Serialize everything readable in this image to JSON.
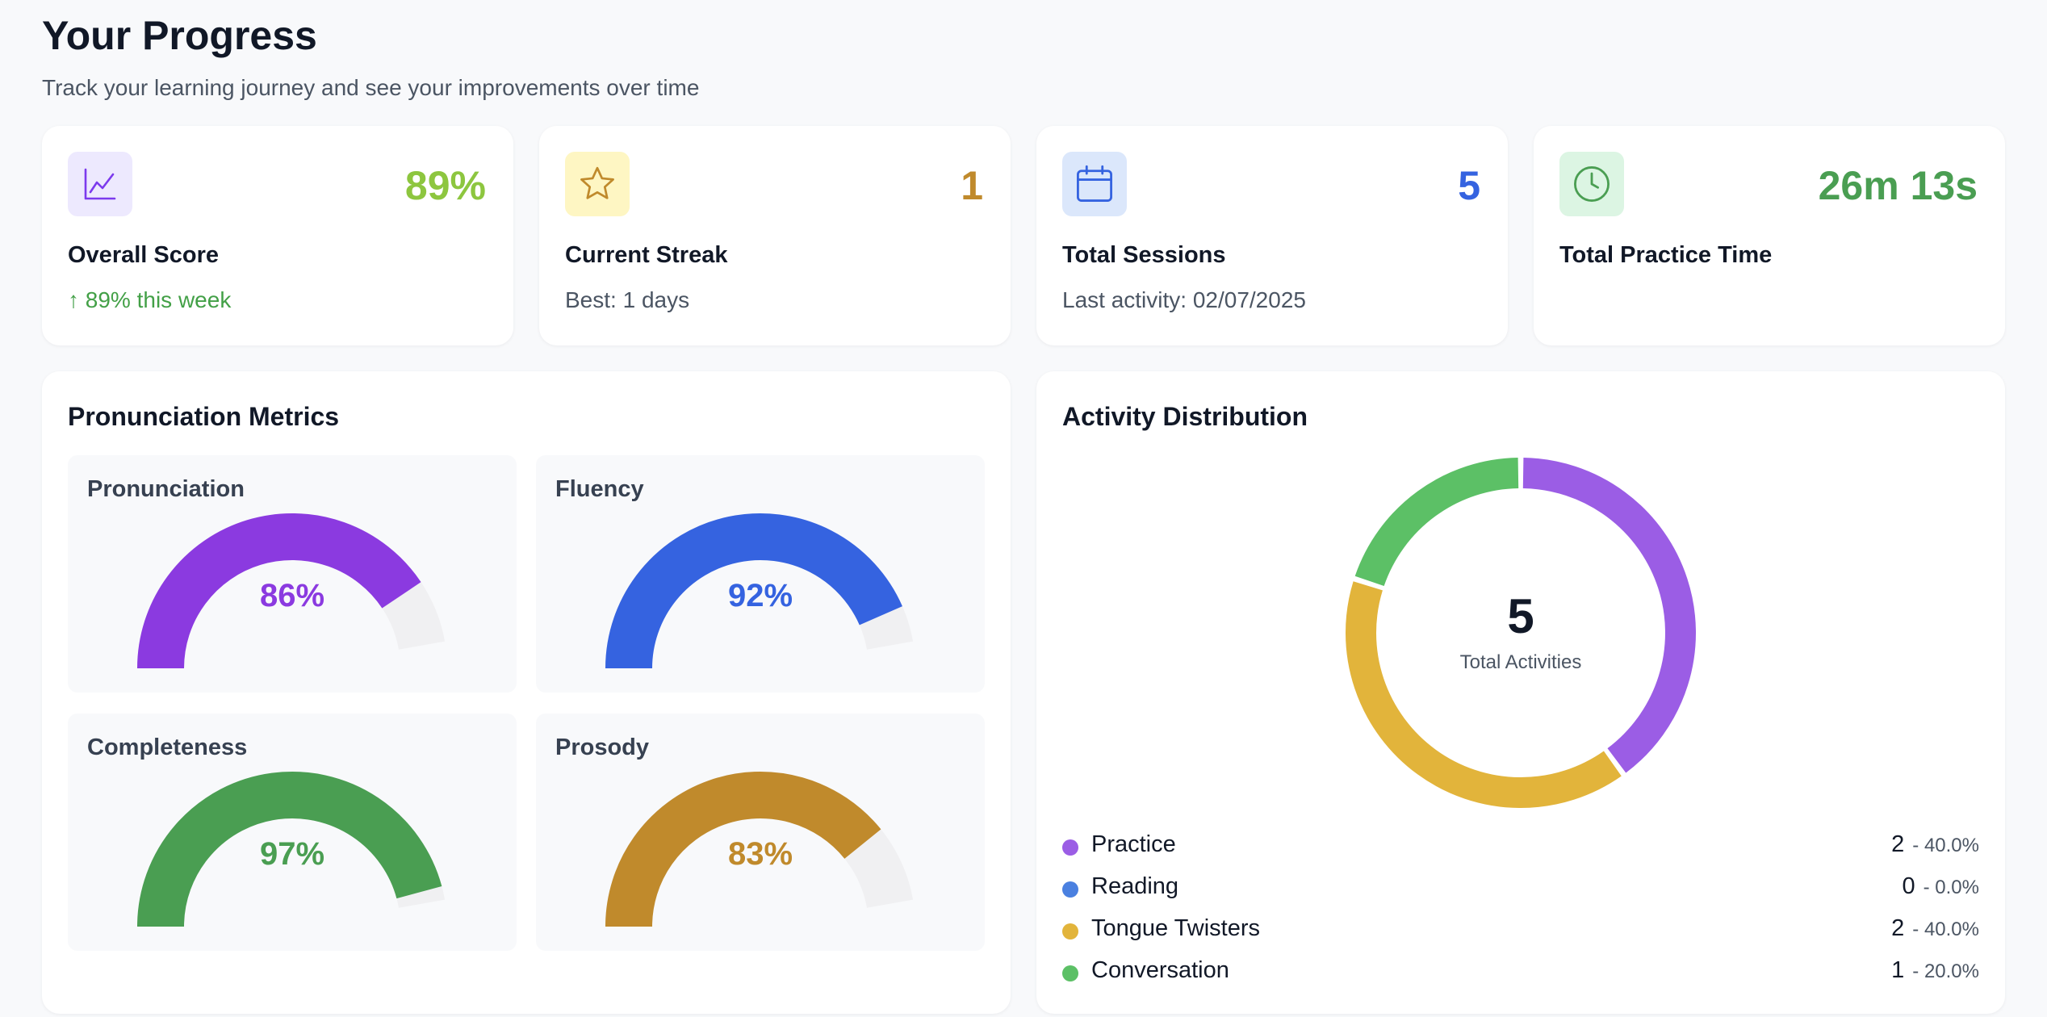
{
  "header": {
    "title": "Your Progress",
    "subtitle": "Track your learning journey and see your improvements over time"
  },
  "stats": [
    {
      "icon": "trend-line-chart-icon",
      "value": "89%",
      "label": "Overall Score",
      "sub": "↑ 89% this week",
      "color": "#8dc63f",
      "sub_color": "#43a047",
      "icon_bg": "#ede9fe",
      "icon_color": "#7c3aed"
    },
    {
      "icon": "star-icon",
      "value": "1",
      "label": "Current Streak",
      "sub": "Best: 1 days",
      "color": "#c08a2c",
      "sub_color": "#4b5563",
      "icon_bg": "#fef6c3",
      "icon_color": "#c08a2c"
    },
    {
      "icon": "calendar-icon",
      "value": "5",
      "label": "Total Sessions",
      "sub": "Last activity: 02/07/2025",
      "color": "#3563e0",
      "sub_color": "#4b5563",
      "icon_bg": "#dbe7fb",
      "icon_color": "#3563e0"
    },
    {
      "icon": "clock-icon",
      "value": "26m 13s",
      "label": "Total Practice Time",
      "sub": "",
      "color": "#4a9e52",
      "sub_color": "#4b5563",
      "icon_bg": "#dcf5e3",
      "icon_color": "#4a9e52"
    }
  ],
  "metrics": {
    "title": "Pronunciation Metrics",
    "items": [
      {
        "label": "Pronunciation",
        "value": 86,
        "display": "86%",
        "color": "#8b3ae0"
      },
      {
        "label": "Fluency",
        "value": 92,
        "display": "92%",
        "color": "#3563e0"
      },
      {
        "label": "Completeness",
        "value": 97,
        "display": "97%",
        "color": "#4a9e52"
      },
      {
        "label": "Prosody",
        "value": 83,
        "display": "83%",
        "color": "#c08a2c"
      }
    ]
  },
  "activity": {
    "title": "Activity Distribution",
    "total": "5",
    "total_label": "Total Activities",
    "items": [
      {
        "name": "Practice",
        "count": 2,
        "pct": "- 40.0%",
        "share": 40,
        "color": "#9b5de5"
      },
      {
        "name": "Reading",
        "count": 0,
        "pct": "- 0.0%",
        "share": 0,
        "color": "#4a80e0"
      },
      {
        "name": "Tongue Twisters",
        "count": 2,
        "pct": "- 40.0%",
        "share": 40,
        "color": "#e2b43b"
      },
      {
        "name": "Conversation",
        "count": 1,
        "pct": "- 20.0%",
        "share": 20,
        "color": "#5cc066"
      }
    ]
  }
}
